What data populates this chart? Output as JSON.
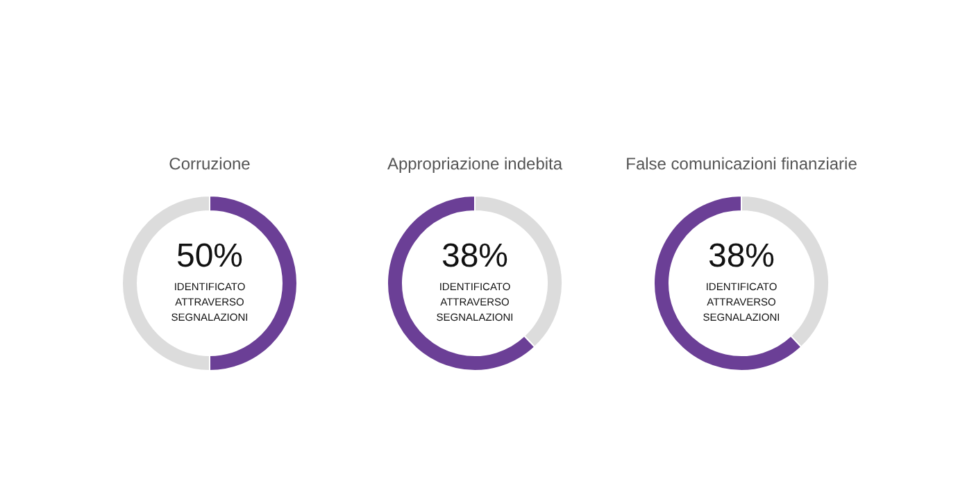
{
  "chart_data": [
    {
      "type": "donut",
      "title": "Corruzione",
      "categories": [
        null,
        null
      ],
      "values": [
        50,
        50
      ],
      "colors": [
        "#6b3f96",
        "#dcdcdc"
      ],
      "annotations": [
        "50%",
        "IDENTIFICATO",
        "ATTRAVERSO",
        "SEGNALAZIONI"
      ]
    },
    {
      "type": "donut",
      "title": "Appropriazione indebita",
      "categories": [
        null,
        null
      ],
      "values": [
        38,
        62
      ],
      "colors": [
        "#dcdcdc",
        "#6b3f96"
      ],
      "annotations": [
        "38%",
        "IDENTIFICATO",
        "ATTRAVERSO",
        "SEGNALAZIONI"
      ]
    },
    {
      "type": "donut",
      "title": "False comunicazioni finanziarie",
      "categories": [
        null,
        null
      ],
      "values": [
        38,
        62
      ],
      "colors": [
        "#dcdcdc",
        "#6b3f96"
      ],
      "annotations": [
        "38%",
        "IDENTIFICATO",
        "ATTRAVERSO",
        "SEGNALAZIONI"
      ]
    }
  ]
}
